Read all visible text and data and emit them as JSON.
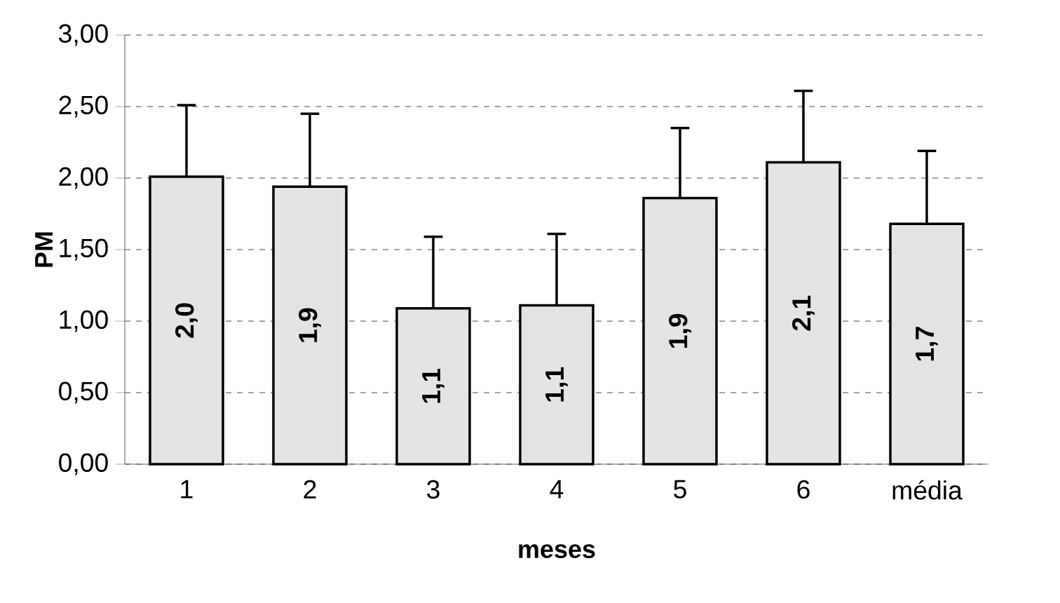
{
  "chart_data": {
    "type": "bar",
    "xlabel": "meses",
    "ylabel": "PM",
    "categories": [
      "1",
      "2",
      "3",
      "4",
      "5",
      "6",
      "média"
    ],
    "values": [
      2.01,
      1.94,
      1.09,
      1.11,
      1.86,
      2.11,
      1.68
    ],
    "errors": [
      [
        2.01,
        2.51
      ],
      [
        1.94,
        2.45
      ],
      [
        1.09,
        1.59
      ],
      [
        1.11,
        1.61
      ],
      [
        1.86,
        2.35
      ],
      [
        2.11,
        2.61
      ],
      [
        1.68,
        2.19
      ]
    ],
    "value_labels": [
      "2,0",
      "1,9",
      "1,1",
      "1,1",
      "1,9",
      "2,1",
      "1,7"
    ],
    "color": "#e4e4e4",
    "ylim": [
      0,
      3
    ],
    "yticks": [
      {
        "value": 0,
        "label": "0,00"
      },
      {
        "value": 0.5,
        "label": "0,50"
      },
      {
        "value": 1,
        "label": "1,00"
      },
      {
        "value": 1.5,
        "label": "1,50"
      },
      {
        "value": 2,
        "label": "2,00"
      },
      {
        "value": 2.5,
        "label": "2,50"
      },
      {
        "value": 3,
        "label": "3,00"
      }
    ],
    "grid": "y"
  }
}
